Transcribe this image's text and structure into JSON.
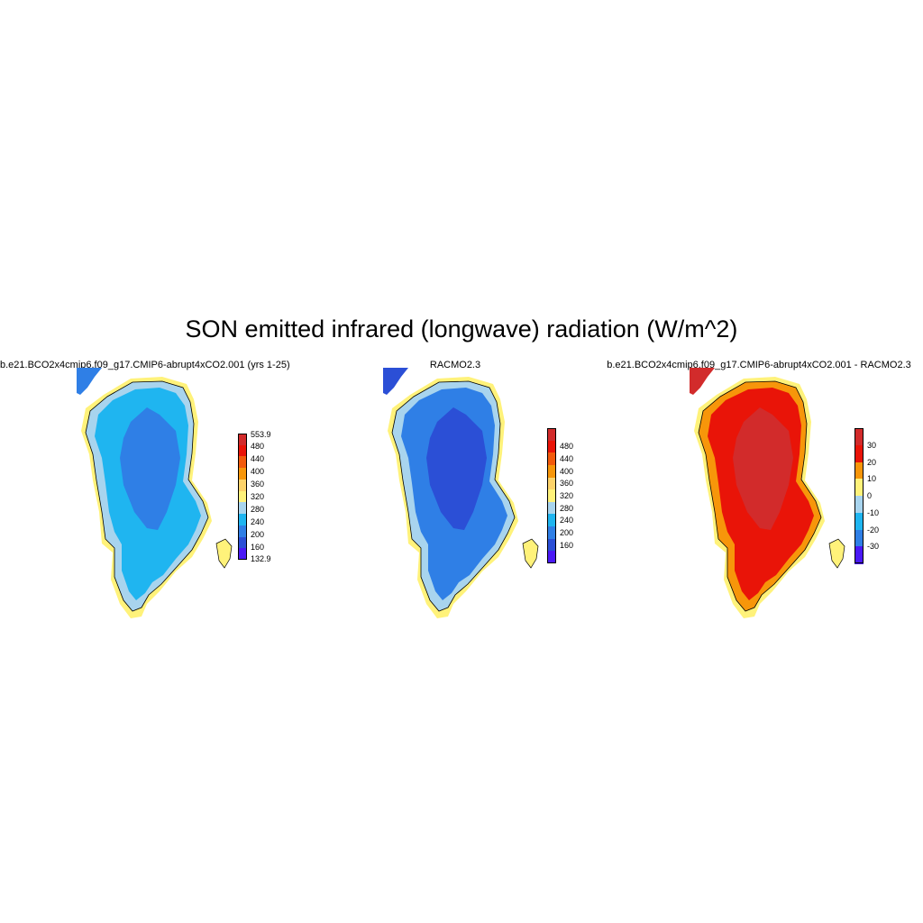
{
  "title": "SON emitted infrared (longwave) radiation (W/m^2)",
  "panels": [
    {
      "title": "b.e21.BCO2x4cmip6.f09_g17.CMIP6-abrupt4xCO2.001 (yrs 1-25)",
      "colorbar": {
        "colors": [
          "#4a19f5",
          "#2b4fd6",
          "#2f7fe6",
          "#1fb5f0",
          "#a8d4ee",
          "#fff27a",
          "#fdd36a",
          "#f7960a",
          "#f25a0c",
          "#e91408",
          "#d22b2b"
        ],
        "labels": [
          "553.9",
          "480",
          "440",
          "400",
          "360",
          "320",
          "280",
          "240",
          "200",
          "160",
          "132.9"
        ]
      },
      "fill": {
        "interior": "#2f7fe6",
        "main": "#1fb5f0",
        "rim": "#a8d4ee",
        "coast": "#fff27a"
      }
    },
    {
      "title": "RACMO2.3",
      "colorbar": {
        "colors": [
          "#4a19f5",
          "#2b4fd6",
          "#2f7fe6",
          "#1fb5f0",
          "#a8d4ee",
          "#fff27a",
          "#fdd36a",
          "#f7960a",
          "#f25a0c",
          "#e91408",
          "#d22b2b"
        ],
        "labels": [
          "480",
          "440",
          "400",
          "360",
          "320",
          "280",
          "240",
          "200",
          "160"
        ]
      },
      "fill": {
        "interior": "#2b4fd6",
        "main": "#2f7fe6",
        "rim": "#a8d4ee",
        "coast": "#fff27a"
      }
    },
    {
      "title": "b.e21.BCO2x4cmip6.f09_g17.CMIP6-abrupt4xCO2.001 - RACMO2.3",
      "colorbar": {
        "colors": [
          "#4a19f5",
          "#2f7fe6",
          "#1fb5f0",
          "#a8d4ee",
          "#fff27a",
          "#f7960a",
          "#e91408",
          "#d22b2b"
        ],
        "labels": [
          "30",
          "20",
          "10",
          "0",
          "-10",
          "-20",
          "-30"
        ]
      },
      "fill": {
        "interior": "#d22b2b",
        "main": "#e91408",
        "rim": "#f7960a",
        "coast": "#fff27a"
      }
    }
  ]
}
